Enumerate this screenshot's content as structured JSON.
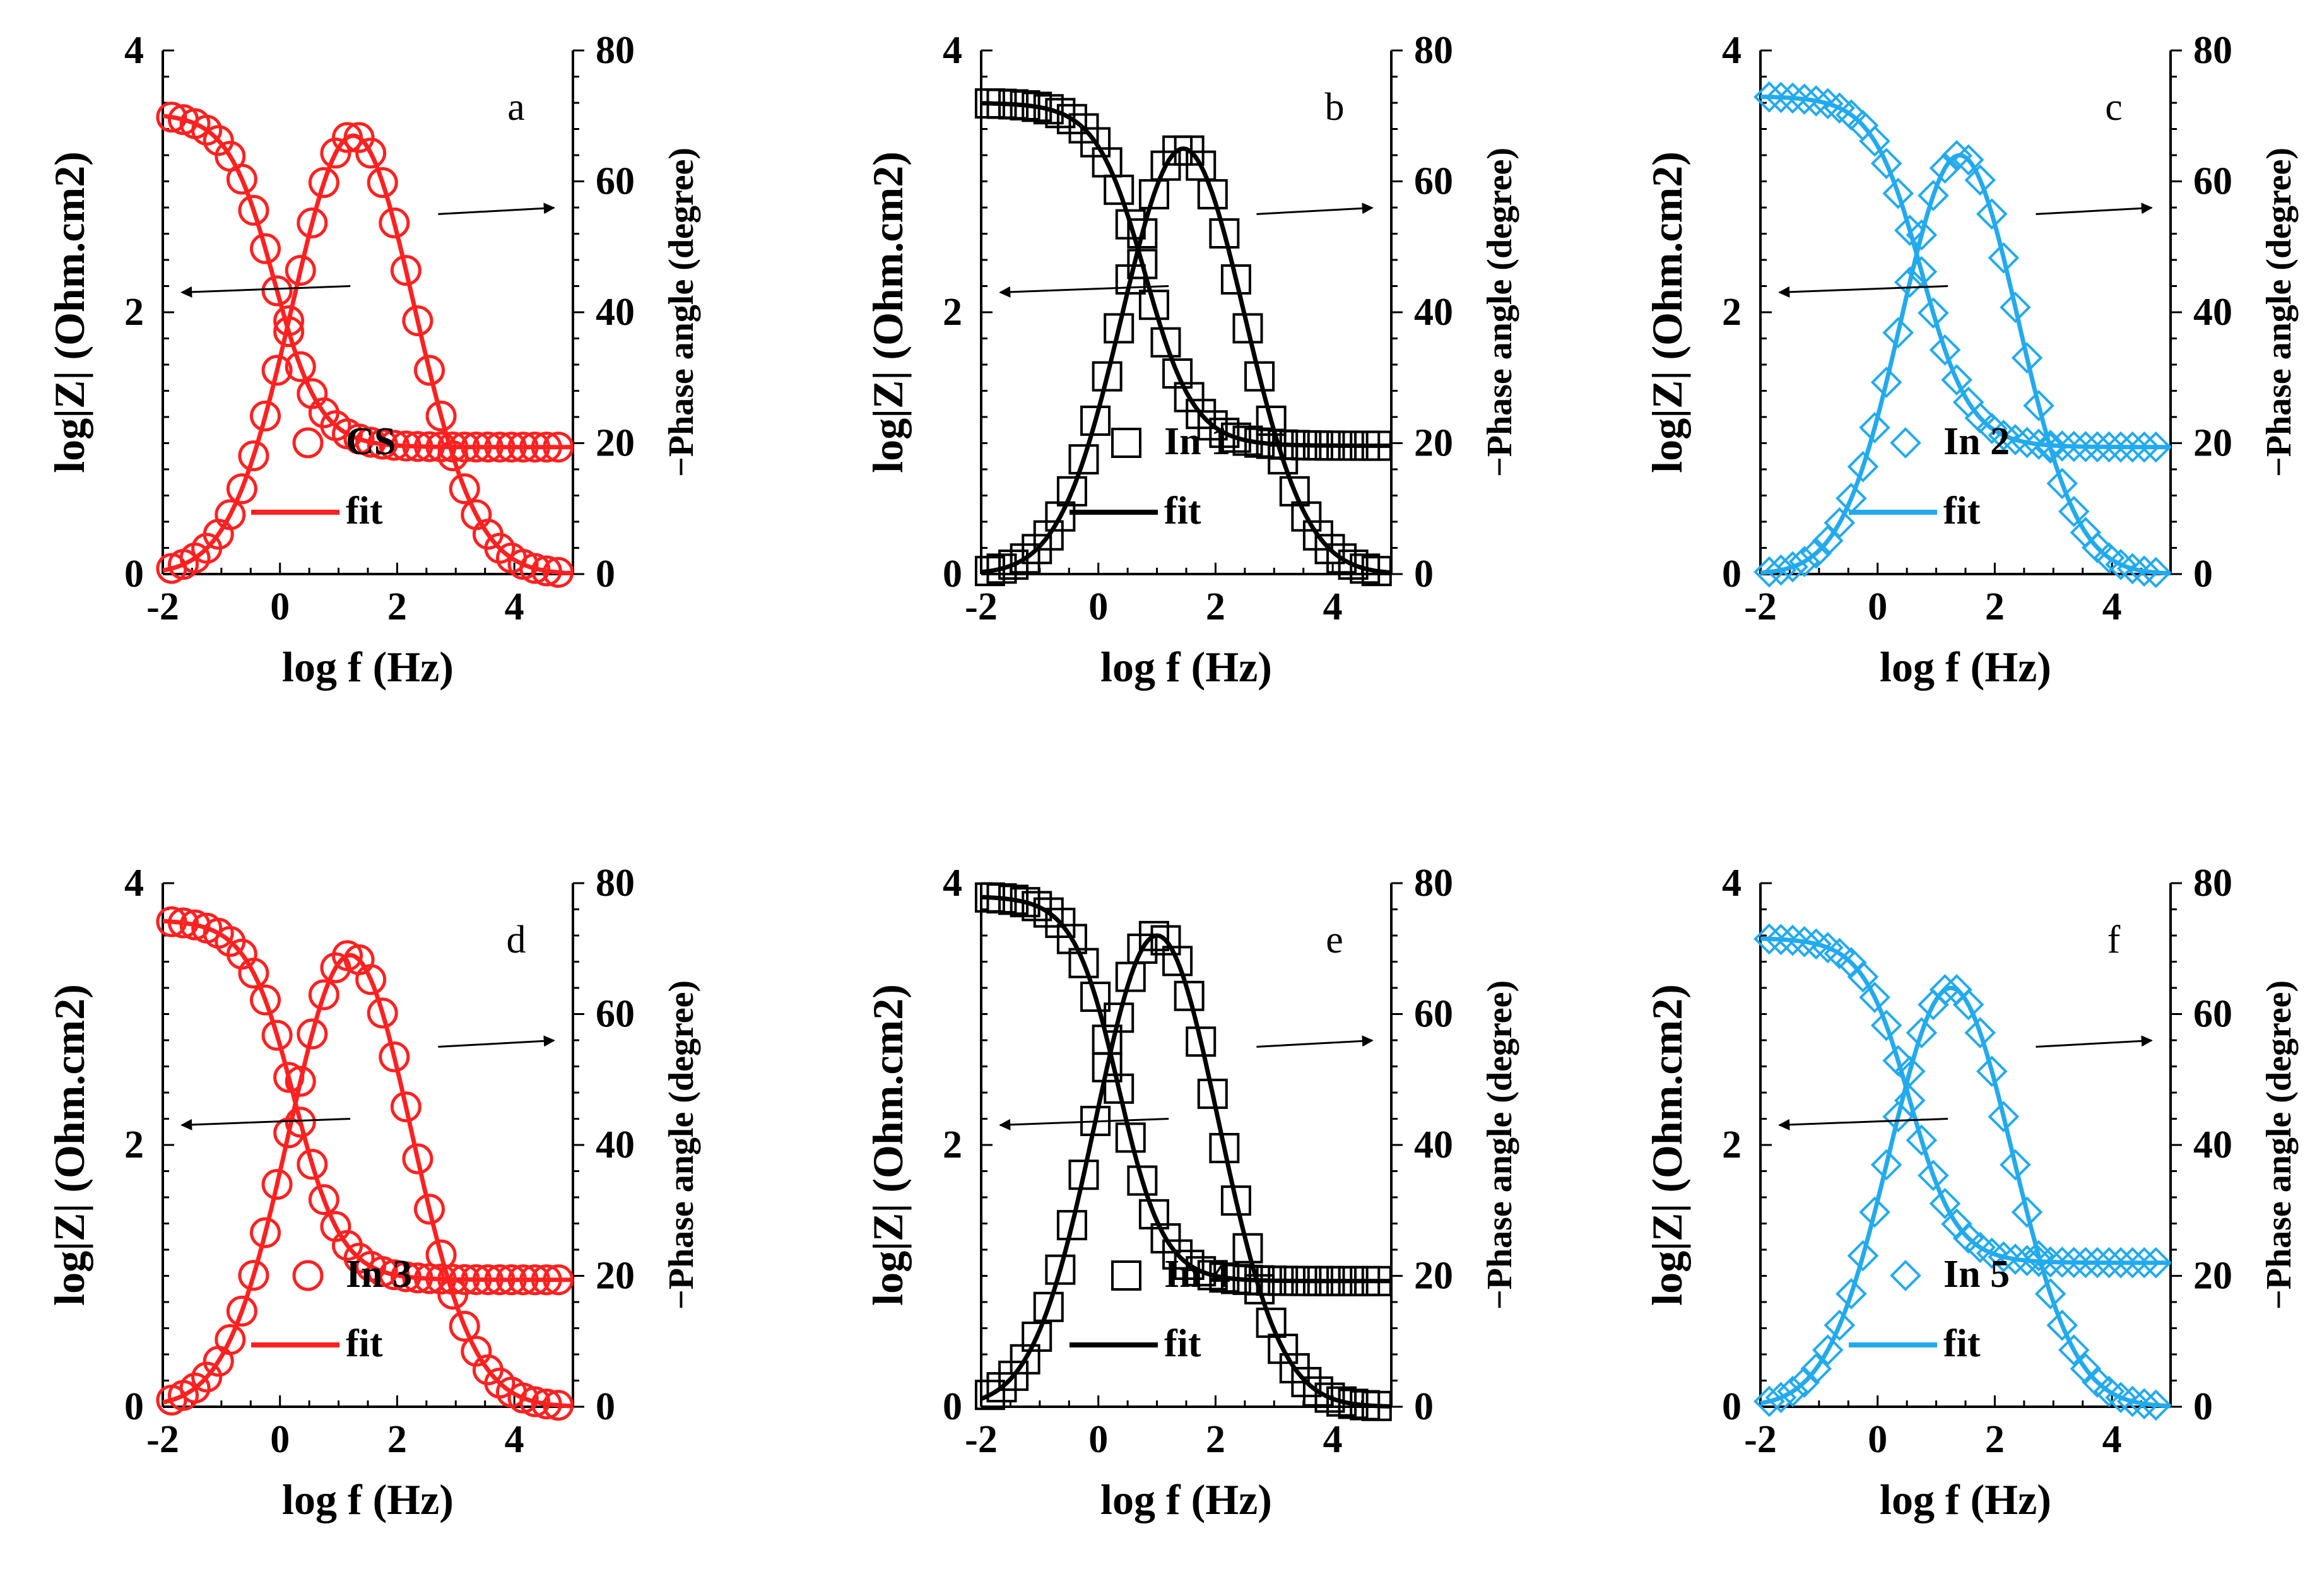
{
  "chart_data": [
    {
      "type": "scatter",
      "panel_label": "a",
      "color": "#ff2020",
      "marker": "circle",
      "xlabel": "log f (Hz)",
      "ylabel_left": "log|Z| (Ohm.cm2)",
      "ylabel_right": "−Phase angle (degree)",
      "xlim": [
        -2,
        5
      ],
      "ylim_left": [
        0,
        4
      ],
      "ylim_right": [
        0,
        80
      ],
      "xticks": [
        "-2",
        "0",
        "2",
        "4"
      ],
      "yticks_left": [
        "0",
        "2",
        "4"
      ],
      "yticks_right": [
        "0",
        "20",
        "40",
        "60",
        "80"
      ],
      "legend": {
        "marker_label": "CS",
        "line_label": "fit"
      },
      "model": {
        "z_low": 3.52,
        "z_high": 0.97,
        "f_c": -0.1,
        "width": 2.55,
        "ph_peak": 67,
        "ph_center": 1.25,
        "ph_sigma": 1.05
      },
      "arrows": {
        "impedance": "left",
        "phase": "right"
      }
    },
    {
      "type": "scatter",
      "panel_label": "b",
      "color": "#000000",
      "marker": "square",
      "xlabel": "log f (Hz)",
      "ylabel_left": "log|Z| (Ohm.cm2)",
      "ylabel_right": "−Phase angle (degree)",
      "xlim": [
        -2,
        5
      ],
      "ylim_left": [
        0,
        4
      ],
      "ylim_right": [
        0,
        80
      ],
      "xticks": [
        "-2",
        "0",
        "2",
        "4"
      ],
      "yticks_left": [
        "0",
        "2",
        "4"
      ],
      "yticks_right": [
        "0",
        "20",
        "40",
        "60",
        "80"
      ],
      "legend": {
        "marker_label": "In 1",
        "line_label": "fit"
      },
      "model": {
        "z_low": 3.6,
        "z_high": 0.98,
        "f_c": 0.8,
        "width": 2.4,
        "ph_peak": 65,
        "ph_center": 1.45,
        "ph_sigma": 1.05
      },
      "arrows": {
        "impedance": "left",
        "phase": "right"
      }
    },
    {
      "type": "scatter",
      "panel_label": "c",
      "color": "#22aaee",
      "marker": "diamond",
      "xlabel": "log f (Hz)",
      "ylabel_left": "log|Z| (Ohm.cm2)",
      "ylabel_right": "−Phase angle (degree)",
      "xlim": [
        -2,
        5
      ],
      "ylim_left": [
        0,
        4
      ],
      "ylim_right": [
        0,
        80
      ],
      "xticks": [
        "-2",
        "0",
        "2",
        "4"
      ],
      "yticks_left": [
        "0",
        "2",
        "4"
      ],
      "yticks_right": [
        "0",
        "20",
        "40",
        "60",
        "80"
      ],
      "legend": {
        "marker_label": "In 2",
        "line_label": "fit"
      },
      "model": {
        "z_low": 3.65,
        "z_high": 0.97,
        "f_c": 0.75,
        "width": 2.4,
        "ph_peak": 64,
        "ph_center": 1.4,
        "ph_sigma": 1.0
      },
      "arrows": {
        "impedance": "left",
        "phase": "right"
      }
    },
    {
      "type": "scatter",
      "panel_label": "d",
      "color": "#ff2020",
      "marker": "circle",
      "xlabel": "log f (Hz)",
      "ylabel_left": "log|Z| (Ohm.cm2)",
      "ylabel_right": "−Phase angle (degree)",
      "xlim": [
        -2,
        5
      ],
      "ylim_left": [
        0,
        4
      ],
      "ylim_right": [
        0,
        80
      ],
      "xticks": [
        "-2",
        "0",
        "2",
        "4"
      ],
      "yticks_left": [
        "0",
        "2",
        "4"
      ],
      "yticks_right": [
        "0",
        "20",
        "40",
        "60",
        "80"
      ],
      "legend": {
        "marker_label": "In 3",
        "line_label": "fit"
      },
      "model": {
        "z_low": 3.72,
        "z_high": 0.97,
        "f_c": 0.25,
        "width": 2.5,
        "ph_peak": 69,
        "ph_center": 1.2,
        "ph_sigma": 1.05
      },
      "arrows": {
        "impedance": "left",
        "phase": "right"
      }
    },
    {
      "type": "scatter",
      "panel_label": "e",
      "color": "#000000",
      "marker": "square",
      "xlabel": "log f (Hz)",
      "ylabel_left": "log|Z| (Ohm.cm2)",
      "ylabel_right": "−Phase angle (degree)",
      "xlim": [
        -2,
        5
      ],
      "ylim_left": [
        0,
        4
      ],
      "ylim_right": [
        0,
        80
      ],
      "xticks": [
        "-2",
        "0",
        "2",
        "4"
      ],
      "yticks_left": [
        "0",
        "2",
        "4"
      ],
      "yticks_right": [
        "0",
        "20",
        "40",
        "60",
        "80"
      ],
      "legend": {
        "marker_label": "In 4",
        "line_label": "fit"
      },
      "model": {
        "z_low": 3.9,
        "z_high": 0.96,
        "f_c": 0.35,
        "width": 2.6,
        "ph_peak": 72,
        "ph_center": 1.0,
        "ph_sigma": 1.05
      },
      "arrows": {
        "impedance": "left",
        "phase": "right"
      }
    },
    {
      "type": "scatter",
      "panel_label": "f",
      "color": "#22aaee",
      "marker": "diamond",
      "xlabel": "log f (Hz)",
      "ylabel_left": "log|Z| (Ohm.cm2)",
      "ylabel_right": "−Phase angle (degree)",
      "xlim": [
        -2,
        5
      ],
      "ylim_left": [
        0,
        4
      ],
      "ylim_right": [
        0,
        80
      ],
      "xticks": [
        "-2",
        "0",
        "2",
        "4"
      ],
      "yticks_left": [
        "0",
        "2",
        "4"
      ],
      "yticks_right": [
        "0",
        "20",
        "40",
        "60",
        "80"
      ],
      "legend": {
        "marker_label": "In 5",
        "line_label": "fit"
      },
      "model": {
        "z_low": 3.58,
        "z_high": 1.1,
        "f_c": 0.55,
        "width": 2.5,
        "ph_peak": 64,
        "ph_center": 1.25,
        "ph_sigma": 1.05
      },
      "arrows": {
        "impedance": "left",
        "phase": "right"
      }
    }
  ]
}
